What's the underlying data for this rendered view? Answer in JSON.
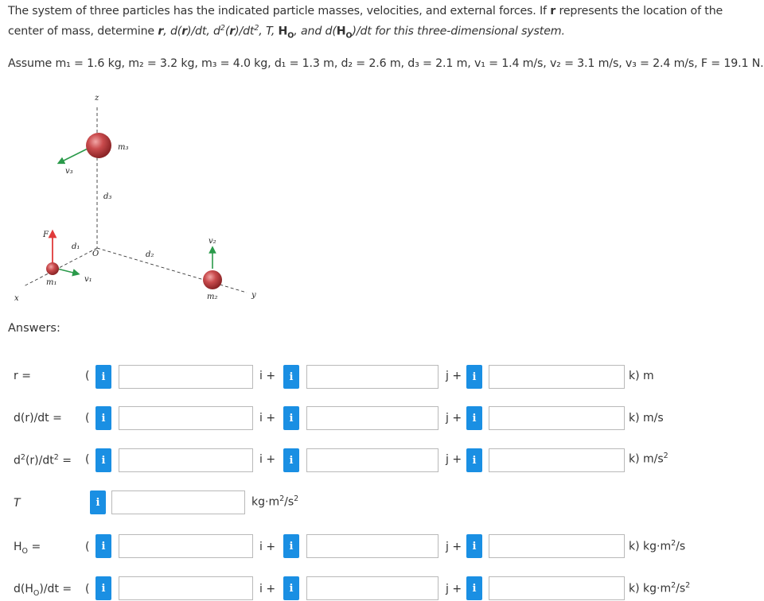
{
  "problem": {
    "p1": "The system of three particles has the indicated particle masses, velocities, and external forces. If ",
    "r_bold": "r",
    "p2": " represents the location of the center of mass, determine ",
    "r2": "r",
    "p3": ", d(",
    "r3": "r",
    "p4": ")/dt, d",
    "p4sup": "2",
    "p5": "(",
    "r4": "r",
    "p6": ")/dt",
    "p6sup": "2",
    "p7": ", T, ",
    "H": "H",
    "Hsub": "O",
    "p8": ", and d(",
    "H2": "H",
    "H2sub": "O",
    "p9": ")/dt for this three-dimensional system."
  },
  "assume": "Assume m₁ = 1.6 kg, m₂ = 3.2 kg, m₃ = 4.0 kg, d₁ = 1.3 m, d₂ = 2.6 m, d₃ = 2.1 m, v₁ = 1.4 m/s, v₂ = 3.1 m/s, v₃ = 2.4 m/s, F = 19.1 N.",
  "diagram": {
    "z": "z",
    "x": "x",
    "y": "y",
    "O": "O",
    "m1": "m₁",
    "m2": "m₂",
    "m3": "m₃",
    "d1": "d₁",
    "d2": "d₂",
    "d3": "d₃",
    "v1": "v₁",
    "v2": "v₂",
    "v3": "v₃",
    "F": "F",
    "colors": {
      "sphere": "#c0494b",
      "force_arrow": "#e03a3a",
      "velocity_arrow": "#2a9a4a"
    }
  },
  "answers_label": "Answers:",
  "info_button": "i",
  "rows": {
    "r": {
      "label": "r =",
      "open": "(",
      "u1": "i +",
      "u2": "j +",
      "u3": "k) m"
    },
    "dr": {
      "label": "d(r)/dt =",
      "open": "(",
      "u1": "i +",
      "u2": "j +",
      "u3": "k) m/s"
    },
    "d2r": {
      "label_a": "d",
      "label_sup": "2",
      "label_b": "(r)/dt",
      "label_sup2": "2",
      "label_c": " =",
      "open": "(",
      "u1": "i +",
      "u2": "j +",
      "u3a": "k) m/s",
      "u3sup": "2"
    },
    "T": {
      "label": "T",
      "unit_a": "kg·m",
      "unit_sup": "2",
      "unit_b": "/s",
      "unit_sup2": "2"
    },
    "Ho": {
      "label_a": "H",
      "label_sub": "O",
      "label_b": " =",
      "open": "(",
      "u1": "i +",
      "u2": "j +",
      "u3a": "k) kg·m",
      "u3sup": "2",
      "u3b": "/s"
    },
    "dHo": {
      "label_a": "d(H",
      "label_sub": "O",
      "label_b": ")/dt =",
      "open": "(",
      "u1": "i +",
      "u2": "j +",
      "u3a": "k) kg·m",
      "u3sup": "2",
      "u3b": "/s",
      "u3sup2": "2"
    }
  },
  "inputs": {
    "r_i": "",
    "r_j": "",
    "r_k": "",
    "dr_i": "",
    "dr_j": "",
    "dr_k": "",
    "d2r_i": "",
    "d2r_j": "",
    "d2r_k": "",
    "T": "",
    "Ho_i": "",
    "Ho_j": "",
    "Ho_k": "",
    "dHo_i": "",
    "dHo_j": "",
    "dHo_k": ""
  }
}
